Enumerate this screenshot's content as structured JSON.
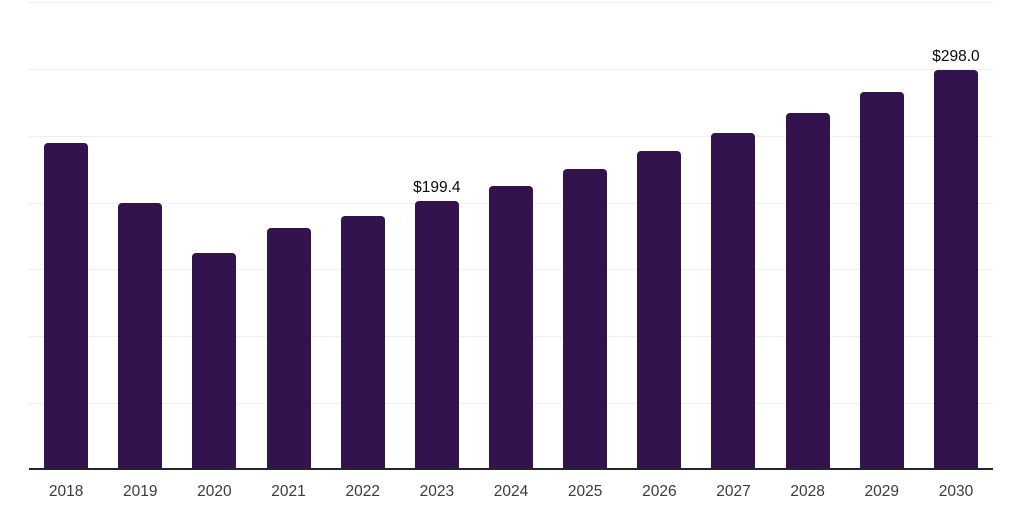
{
  "colors": {
    "bar": "#33134d",
    "gridline": "#efefef",
    "axis": "#262626",
    "tick_label": "#3b3b3b",
    "value_label": "#0a0a0a",
    "background": "#ffffff"
  },
  "chart_data": {
    "type": "bar",
    "title": "",
    "xlabel": "",
    "ylabel": "",
    "categories": [
      "2018",
      "2019",
      "2020",
      "2021",
      "2022",
      "2023",
      "2024",
      "2025",
      "2026",
      "2027",
      "2028",
      "2029",
      "2030"
    ],
    "values": [
      243.0,
      198.4,
      160.5,
      179.5,
      188.6,
      199.4,
      211.2,
      223.7,
      236.9,
      250.9,
      265.7,
      281.4,
      298.0
    ],
    "annotations": [
      {
        "category": "2023",
        "text": "$199.4"
      },
      {
        "category": "2030",
        "text": "$298.0"
      }
    ],
    "ylim": [
      0,
      350
    ],
    "gridline_step": 50,
    "grid": true,
    "y_tick_labels_shown": false,
    "legend_position": "none"
  }
}
